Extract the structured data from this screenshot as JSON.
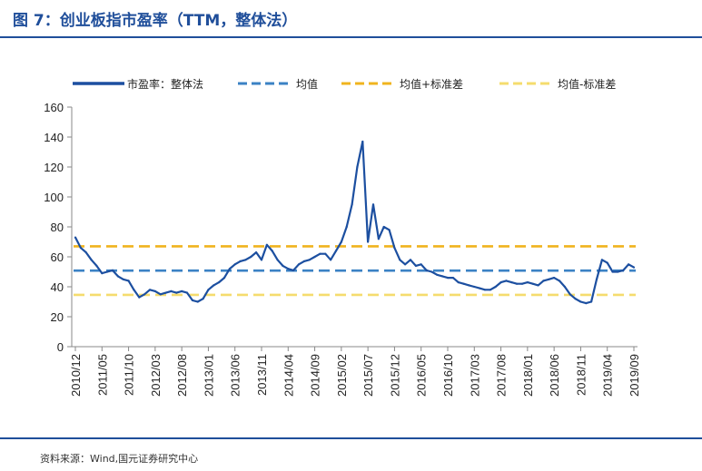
{
  "figure": {
    "title": "图 7：创业板指市盈率（TTM，整体法）",
    "source": "资料来源：Wind,国元证券研究中心"
  },
  "colors": {
    "series": "#1c4fa0",
    "mean": "#3b82c4",
    "upper": "#f0b41e",
    "lower": "#f5dc6e",
    "accent": "#1f4e9a"
  },
  "chart_data": {
    "type": "line",
    "title": "",
    "xlabel": "",
    "ylabel": "",
    "ylim": [
      0,
      160
    ],
    "yticks": [
      "0",
      "20",
      "40",
      "60",
      "80",
      "100",
      "120",
      "140",
      "160"
    ],
    "xticks": [
      "2010/12",
      "2011/05",
      "2011/10",
      "2012/03",
      "2012/08",
      "2013/01",
      "2013/06",
      "2013/11",
      "2014/04",
      "2014/09",
      "2015/02",
      "2015/07",
      "2015/12",
      "2016/05",
      "2016/10",
      "2017/03",
      "2017/08",
      "2018/01",
      "2018/06",
      "2018/11",
      "2019/04",
      "2019/09"
    ],
    "legend_position": "top",
    "grid": false,
    "series": [
      {
        "name": "市盈率：整体法",
        "style": "solid",
        "x": [
          "2010/12",
          "2011/01",
          "2011/02",
          "2011/03",
          "2011/04",
          "2011/05",
          "2011/06",
          "2011/07",
          "2011/08",
          "2011/09",
          "2011/10",
          "2011/11",
          "2011/12",
          "2012/01",
          "2012/02",
          "2012/03",
          "2012/04",
          "2012/05",
          "2012/06",
          "2012/07",
          "2012/08",
          "2012/09",
          "2012/10",
          "2012/11",
          "2012/12",
          "2013/01",
          "2013/02",
          "2013/03",
          "2013/04",
          "2013/05",
          "2013/06",
          "2013/07",
          "2013/08",
          "2013/09",
          "2013/10",
          "2013/11",
          "2013/12",
          "2014/01",
          "2014/02",
          "2014/03",
          "2014/04",
          "2014/05",
          "2014/06",
          "2014/07",
          "2014/08",
          "2014/09",
          "2014/10",
          "2014/11",
          "2014/12",
          "2015/01",
          "2015/02",
          "2015/03",
          "2015/04",
          "2015/05",
          "2015/06",
          "2015/07",
          "2015/08",
          "2015/09",
          "2015/10",
          "2015/11",
          "2015/12",
          "2016/01",
          "2016/02",
          "2016/03",
          "2016/04",
          "2016/05",
          "2016/06",
          "2016/07",
          "2016/08",
          "2016/09",
          "2016/10",
          "2016/11",
          "2016/12",
          "2017/01",
          "2017/02",
          "2017/03",
          "2017/04",
          "2017/05",
          "2017/06",
          "2017/07",
          "2017/08",
          "2017/09",
          "2017/10",
          "2017/11",
          "2017/12",
          "2018/01",
          "2018/02",
          "2018/03",
          "2018/04",
          "2018/05",
          "2018/06",
          "2018/07",
          "2018/08",
          "2018/09",
          "2018/10",
          "2018/11",
          "2018/12",
          "2019/01",
          "2019/02",
          "2019/03",
          "2019/04",
          "2019/05",
          "2019/06",
          "2019/07",
          "2019/08",
          "2019/09"
        ],
        "values": [
          73,
          66,
          63,
          58,
          54,
          49,
          50,
          51,
          47,
          45,
          44,
          38,
          33,
          35,
          38,
          37,
          35,
          36,
          37,
          36,
          37,
          36,
          31,
          30,
          32,
          38,
          41,
          43,
          46,
          52,
          55,
          57,
          58,
          60,
          63,
          58,
          68,
          64,
          58,
          54,
          52,
          51,
          55,
          57,
          58,
          60,
          62,
          62,
          58,
          64,
          70,
          80,
          95,
          120,
          137,
          70,
          95,
          72,
          80,
          78,
          66,
          58,
          55,
          58,
          54,
          55,
          51,
          50,
          48,
          47,
          46,
          46,
          43,
          42,
          41,
          40,
          39,
          38,
          38,
          40,
          43,
          44,
          43,
          42,
          42,
          43,
          42,
          41,
          44,
          45,
          46,
          44,
          40,
          35,
          32,
          30,
          29,
          30,
          45,
          58,
          56,
          50,
          50,
          51,
          55,
          53
        ]
      },
      {
        "name": "均值",
        "style": "dash",
        "value": 50.8
      },
      {
        "name": "均值+标准差",
        "style": "dash",
        "value": 67
      },
      {
        "name": "均值-标准差",
        "style": "dash",
        "value": 34.6
      }
    ]
  }
}
